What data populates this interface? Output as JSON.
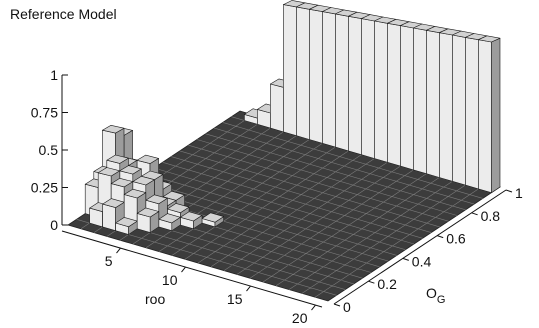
{
  "chart_data": {
    "type": "bar3d",
    "title": "Reference Model",
    "x_label": "roo",
    "y_label": {
      "text": "O",
      "subscript": "G"
    },
    "xlim": [
      0.5,
      20.5
    ],
    "xticks": [
      5,
      10,
      15,
      20
    ],
    "ylim": [
      0,
      1
    ],
    "yticks": [
      0,
      0.2,
      0.4,
      0.6,
      0.8,
      1
    ],
    "zlim": [
      0,
      1
    ],
    "zticks": [
      0,
      0.25,
      0.5,
      0.75,
      1
    ],
    "roo": [
      1,
      1,
      1,
      1,
      2,
      2,
      2,
      2,
      2,
      2,
      3,
      3,
      3,
      3,
      3,
      3,
      4,
      4,
      4,
      4,
      4,
      5,
      5,
      5,
      5,
      6,
      6,
      7,
      8,
      2,
      3,
      4,
      5,
      6,
      7,
      8,
      9,
      10,
      11,
      12,
      13,
      14,
      15,
      16,
      17,
      18,
      19,
      20
    ],
    "og": [
      0.125,
      0.175,
      0.225,
      0.275,
      0.075,
      0.125,
      0.175,
      0.225,
      0.275,
      0.325,
      0.075,
      0.125,
      0.175,
      0.225,
      0.275,
      0.325,
      0.075,
      0.125,
      0.175,
      0.225,
      0.275,
      0.125,
      0.175,
      0.225,
      0.275,
      0.175,
      0.225,
      0.225,
      0.275,
      0.975,
      0.975,
      0.975,
      0.975,
      0.975,
      0.975,
      0.975,
      0.975,
      0.975,
      0.975,
      0.975,
      0.975,
      0.975,
      0.975,
      0.975,
      0.975,
      0.975,
      0.975,
      0.975
    ],
    "values": [
      0.2,
      0.25,
      0.5,
      0.45,
      0.1,
      0.3,
      0.35,
      0.3,
      0.25,
      0.15,
      0.15,
      0.25,
      0.3,
      0.2,
      0.3,
      0.1,
      0.05,
      0.2,
      0.25,
      0.25,
      0.15,
      0.1,
      0.15,
      0.1,
      0.1,
      0.05,
      0.08,
      0.05,
      0.03,
      0.05,
      0.12,
      0.35,
      1,
      1,
      1,
      1,
      1,
      1,
      1,
      1,
      1,
      1,
      1,
      1,
      1,
      1,
      1,
      1
    ]
  }
}
